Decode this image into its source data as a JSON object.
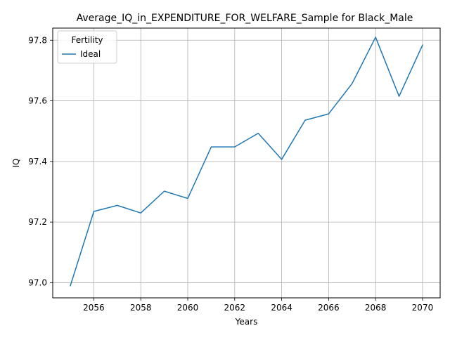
{
  "chart_data": {
    "type": "line",
    "title": "Average_IQ_in_EXPENDITURE_FOR_WELFARE_Sample for Black_Male",
    "xlabel": "Years",
    "ylabel": "IQ",
    "xlim": [
      2054.25,
      2070.75
    ],
    "ylim": [
      96.95,
      97.84
    ],
    "xticks": [
      2056,
      2058,
      2060,
      2062,
      2064,
      2066,
      2068,
      2070
    ],
    "yticks": [
      97.0,
      97.2,
      97.4,
      97.6,
      97.8
    ],
    "grid": true,
    "legend": {
      "title": "Fertility",
      "position": "top-left"
    },
    "series": [
      {
        "name": "Ideal",
        "color": "#1f77b4",
        "x": [
          2055,
          2056,
          2057,
          2058,
          2059,
          2060,
          2061,
          2062,
          2063,
          2064,
          2065,
          2066,
          2067,
          2068,
          2069,
          2070
        ],
        "y": [
          96.99,
          97.235,
          97.255,
          97.23,
          97.302,
          97.278,
          97.448,
          97.448,
          97.493,
          97.407,
          97.536,
          97.557,
          97.657,
          97.81,
          97.615,
          97.784
        ]
      }
    ]
  }
}
